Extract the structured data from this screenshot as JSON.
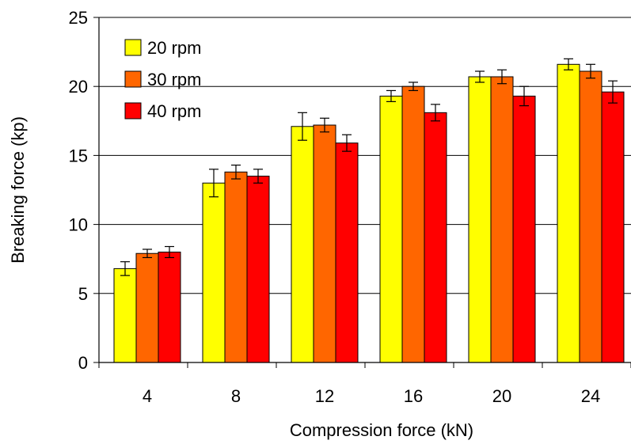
{
  "chart_data": {
    "type": "bar",
    "title": "",
    "xlabel": "Compression force (kN)",
    "ylabel": "Breaking force (kp)",
    "categories": [
      "4",
      "8",
      "12",
      "16",
      "20",
      "24"
    ],
    "ylim": [
      0,
      25
    ],
    "yticks": [
      "0",
      "5",
      "10",
      "15",
      "20",
      "25"
    ],
    "grid": "horizontal",
    "legend": "top-left",
    "series": [
      {
        "name": "20 rpm",
        "color": "#ffff00",
        "values": [
          6.8,
          13.0,
          17.1,
          19.3,
          20.7,
          21.6
        ],
        "errors": [
          0.5,
          1.0,
          1.0,
          0.4,
          0.4,
          0.4
        ]
      },
      {
        "name": "30 rpm",
        "color": "#ff6600",
        "values": [
          7.9,
          13.8,
          17.2,
          20.0,
          20.7,
          21.1
        ],
        "errors": [
          0.3,
          0.5,
          0.5,
          0.3,
          0.5,
          0.5
        ]
      },
      {
        "name": "40 rpm",
        "color": "#ff0000",
        "values": [
          8.0,
          13.5,
          15.9,
          18.1,
          19.3,
          19.6
        ],
        "errors": [
          0.4,
          0.5,
          0.6,
          0.6,
          0.7,
          0.8
        ]
      }
    ]
  }
}
